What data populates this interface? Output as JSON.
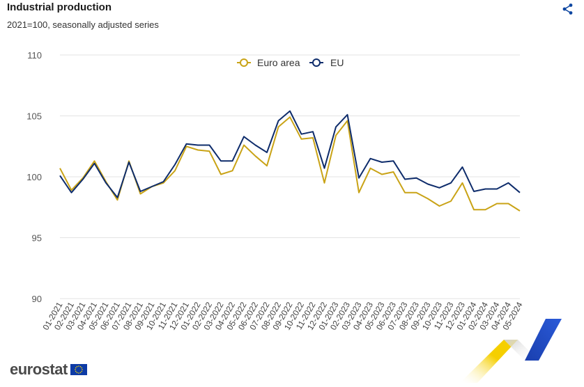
{
  "header": {
    "title": "Industrial production",
    "subtitle": "2021=100, seasonally adjusted series"
  },
  "footer": {
    "brand": "eurostat"
  },
  "icons": {
    "share": "share-icon",
    "flag": "eu-flag-icon",
    "decoration": "eurostat-swoosh-decoration"
  },
  "chart_data": {
    "type": "line",
    "title": "",
    "xlabel": "",
    "ylabel": "",
    "ylim": [
      90,
      110
    ],
    "yticks": [
      90,
      95,
      100,
      105,
      110
    ],
    "grid": true,
    "legend_position": "top-center",
    "categories": [
      "01-2021",
      "02-2021",
      "03-2021",
      "04-2021",
      "05-2021",
      "06-2021",
      "07-2021",
      "08-2021",
      "09-2021",
      "10-2021",
      "11-2021",
      "12-2021",
      "01-2022",
      "02-2022",
      "03-2022",
      "04-2022",
      "05-2022",
      "06-2022",
      "07-2022",
      "08-2022",
      "09-2022",
      "10-2022",
      "11-2022",
      "12-2022",
      "01-2023",
      "02-2023",
      "03-2023",
      "04-2023",
      "05-2023",
      "06-2023",
      "07-2023",
      "08-2023",
      "09-2023",
      "10-2023",
      "11-2023",
      "12-2023",
      "01-2024",
      "02-2024",
      "03-2024",
      "04-2024",
      "05-2024"
    ],
    "series": [
      {
        "name": "Euro area",
        "color": "#c9a316",
        "values": [
          100.7,
          98.9,
          99.9,
          101.3,
          99.6,
          98.1,
          101.3,
          98.6,
          99.2,
          99.5,
          100.5,
          102.5,
          102.2,
          102.1,
          100.2,
          100.5,
          102.6,
          101.7,
          100.9,
          104.1,
          104.9,
          103.1,
          103.2,
          99.5,
          103.4,
          104.6,
          98.7,
          100.7,
          100.2,
          100.4,
          98.7,
          98.7,
          98.2,
          97.6,
          98.0,
          99.5,
          97.3,
          97.3,
          97.8,
          97.8,
          97.2
        ]
      },
      {
        "name": "EU",
        "color": "#0e2c6b",
        "values": [
          100.1,
          98.7,
          99.8,
          101.1,
          99.5,
          98.3,
          101.2,
          98.8,
          99.2,
          99.6,
          101.0,
          102.7,
          102.6,
          102.6,
          101.3,
          101.3,
          103.3,
          102.6,
          102.0,
          104.6,
          105.4,
          103.5,
          103.7,
          100.7,
          104.1,
          105.1,
          99.9,
          101.5,
          101.2,
          101.3,
          99.8,
          99.9,
          99.4,
          99.1,
          99.5,
          100.8,
          98.8,
          99.0,
          99.0,
          99.5,
          98.7
        ]
      }
    ]
  }
}
